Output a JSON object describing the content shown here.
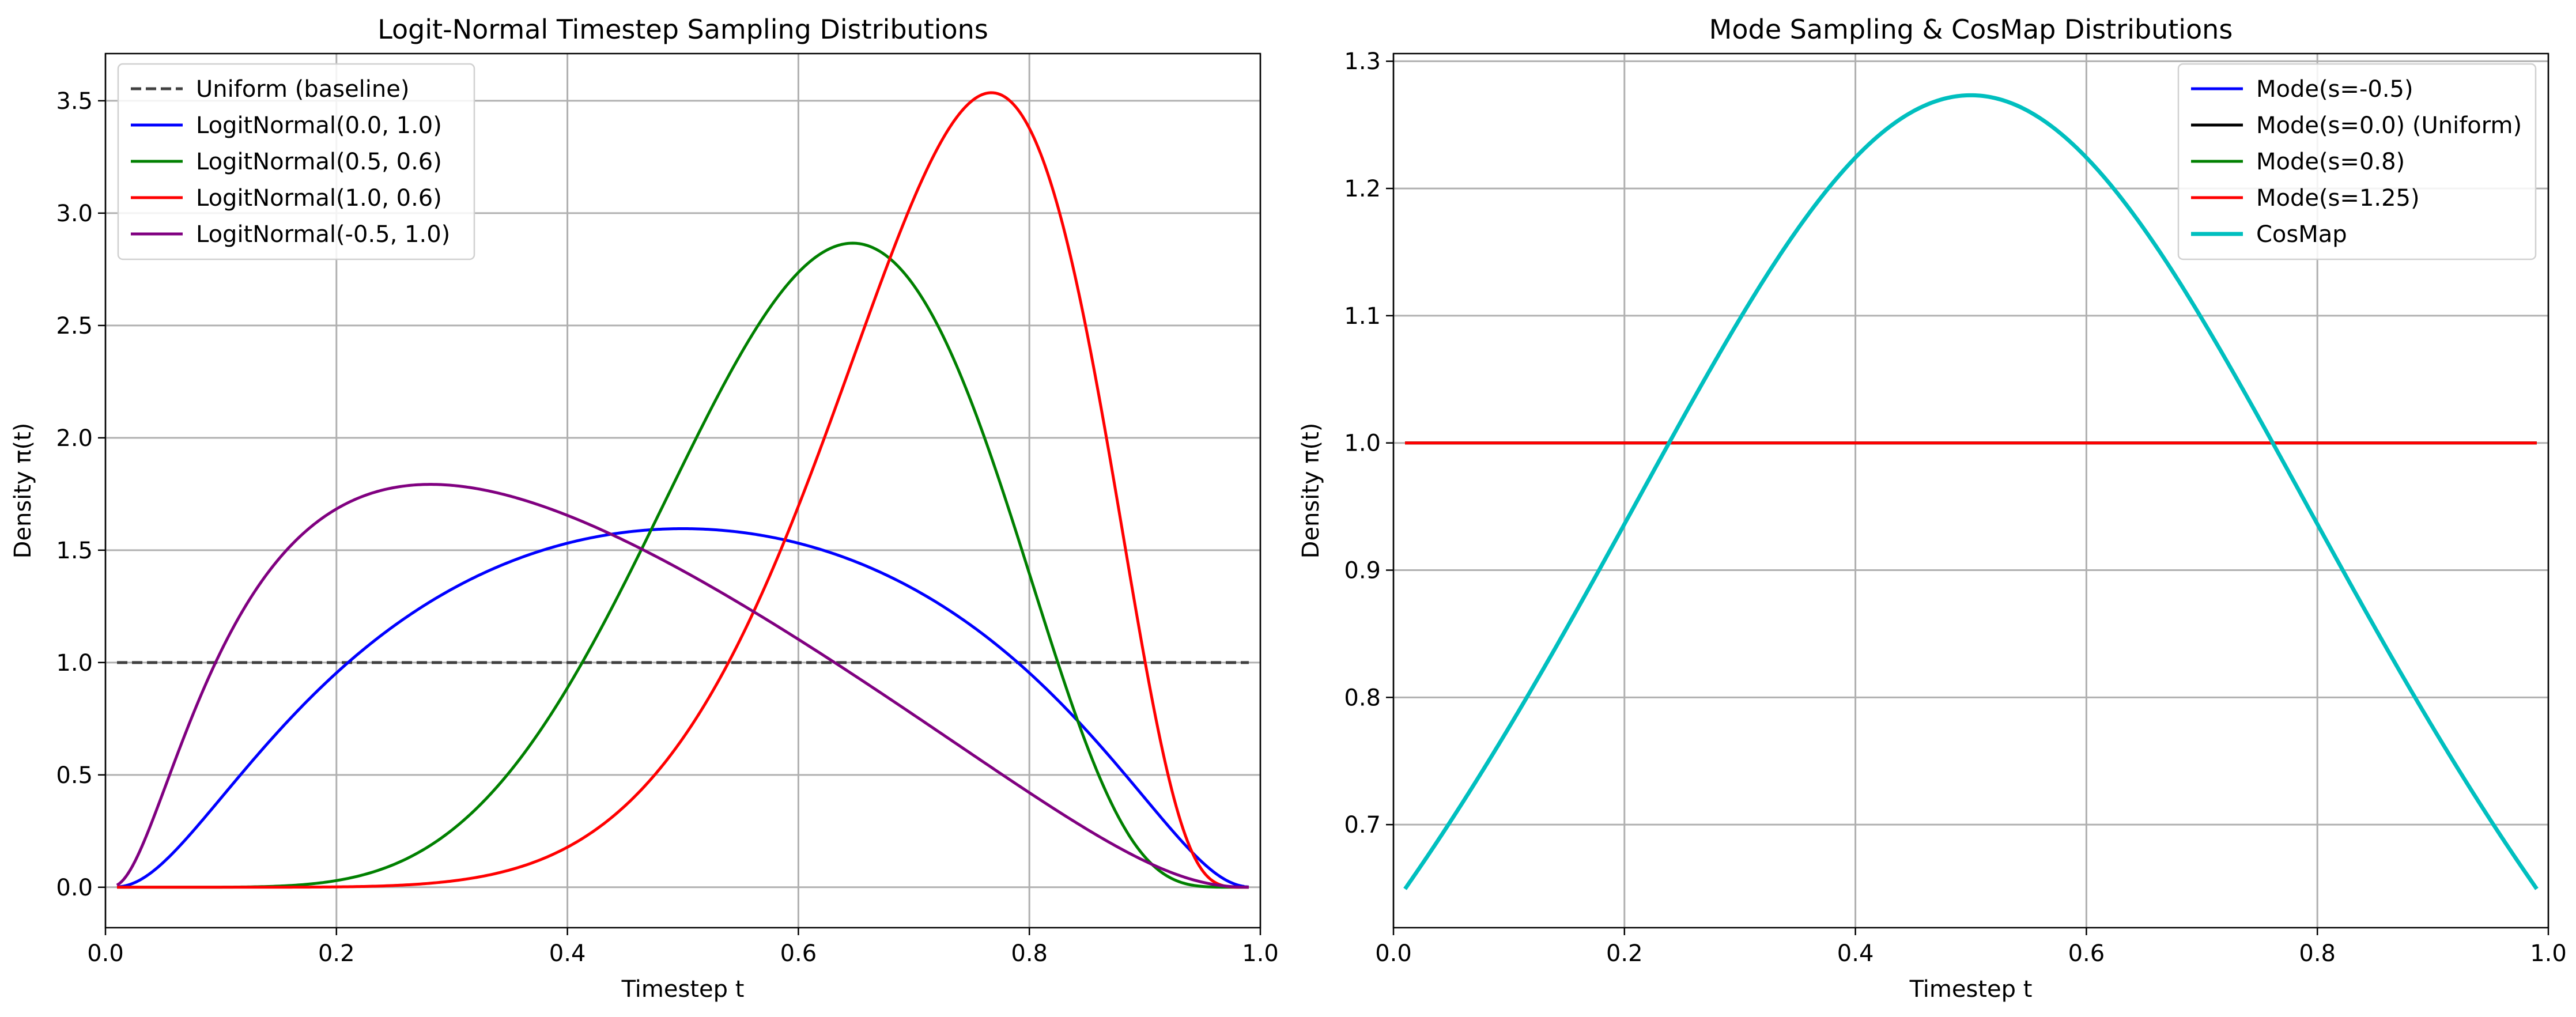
{
  "chart_data": [
    {
      "type": "line",
      "title": "Logit-Normal Timestep Sampling Distributions",
      "xlabel": "Timestep t",
      "ylabel": "Density π(t)",
      "xlim": [
        0.0,
        1.0
      ],
      "ylim": [
        -0.18,
        3.71
      ],
      "xticks": [
        "0.0",
        "0.2",
        "0.4",
        "0.6",
        "0.8",
        "1.0"
      ],
      "yticks": [
        "0.0",
        "0.5",
        "1.0",
        "1.5",
        "2.0",
        "2.5",
        "3.0",
        "3.5"
      ],
      "grid": true,
      "legend_position": "upper-left",
      "series": [
        {
          "name": "Uniform (baseline)",
          "color": "#404040",
          "dash": true,
          "kind": "uniform"
        },
        {
          "name": "LogitNormal(0.0, 1.0)",
          "color": "#0000ff",
          "kind": "logitnormal",
          "mu": 0.0,
          "sigma": 1.0
        },
        {
          "name": "LogitNormal(0.5, 0.6)",
          "color": "#008000",
          "kind": "logitnormal",
          "mu": 0.5,
          "sigma": 0.6
        },
        {
          "name": "LogitNormal(1.0, 0.6)",
          "color": "#ff0000",
          "kind": "logitnormal",
          "mu": 1.0,
          "sigma": 0.6
        },
        {
          "name": "LogitNormal(-0.5, 1.0)",
          "color": "#800080",
          "kind": "logitnormal",
          "mu": -0.5,
          "sigma": 1.0
        }
      ]
    },
    {
      "type": "line",
      "title": "Mode Sampling & CosMap Distributions",
      "xlabel": "Timestep t",
      "ylabel": "Density π(t)",
      "xlim": [
        0.0,
        1.0
      ],
      "ylim": [
        0.619,
        1.306
      ],
      "xticks": [
        "0.0",
        "0.2",
        "0.4",
        "0.6",
        "0.8",
        "1.0"
      ],
      "yticks": [
        "0.7",
        "0.8",
        "0.9",
        "1.0",
        "1.1",
        "1.2",
        "1.3"
      ],
      "grid": true,
      "legend_position": "upper-right",
      "series": [
        {
          "name": "Mode(s=-0.5)",
          "color": "#0000ff",
          "kind": "constant"
        },
        {
          "name": "Mode(s=0.0) (Uniform)",
          "color": "#000000",
          "kind": "constant"
        },
        {
          "name": "Mode(s=0.8)",
          "color": "#008000",
          "kind": "constant"
        },
        {
          "name": "Mode(s=1.25)",
          "color": "#ff0000",
          "kind": "constant"
        },
        {
          "name": "CosMap",
          "color": "#00bfbf",
          "kind": "cosmap",
          "thick": true
        }
      ]
    }
  ]
}
